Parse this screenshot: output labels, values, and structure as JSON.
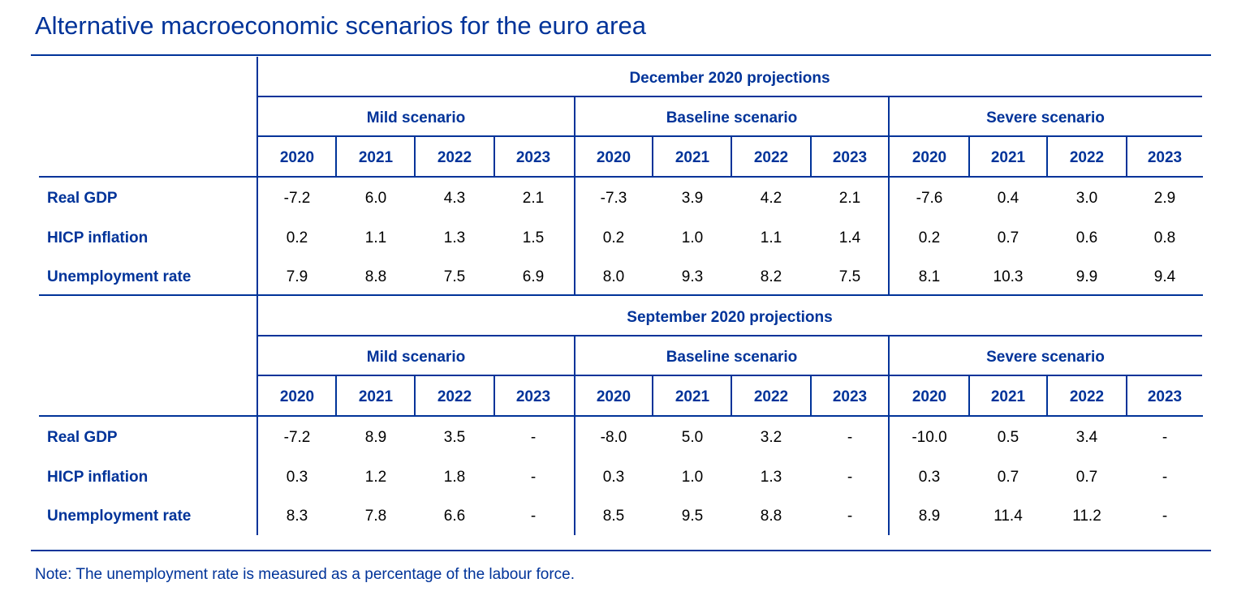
{
  "title": "Alternative macroeconomic scenarios for the euro area",
  "years": [
    "2020",
    "2021",
    "2022",
    "2023"
  ],
  "row_labels": [
    "Real GDP",
    "HICP inflation",
    "Unemployment rate"
  ],
  "sections": [
    {
      "heading": "December 2020 projections",
      "scenarios": [
        {
          "name": "Mild scenario",
          "rows": [
            [
              "-7.2",
              "6.0",
              "4.3",
              "2.1"
            ],
            [
              "0.2",
              "1.1",
              "1.3",
              "1.5"
            ],
            [
              "7.9",
              "8.8",
              "7.5",
              "6.9"
            ]
          ]
        },
        {
          "name": "Baseline scenario",
          "rows": [
            [
              "-7.3",
              "3.9",
              "4.2",
              "2.1"
            ],
            [
              "0.2",
              "1.0",
              "1.1",
              "1.4"
            ],
            [
              "8.0",
              "9.3",
              "8.2",
              "7.5"
            ]
          ]
        },
        {
          "name": "Severe scenario",
          "rows": [
            [
              "-7.6",
              "0.4",
              "3.0",
              "2.9"
            ],
            [
              "0.2",
              "0.7",
              "0.6",
              "0.8"
            ],
            [
              "8.1",
              "10.3",
              "9.9",
              "9.4"
            ]
          ]
        }
      ]
    },
    {
      "heading": "September 2020 projections",
      "scenarios": [
        {
          "name": "Mild scenario",
          "rows": [
            [
              "-7.2",
              "8.9",
              "3.5",
              "-"
            ],
            [
              "0.3",
              "1.2",
              "1.8",
              "-"
            ],
            [
              "8.3",
              "7.8",
              "6.6",
              "-"
            ]
          ]
        },
        {
          "name": "Baseline scenario",
          "rows": [
            [
              "-8.0",
              "5.0",
              "3.2",
              "-"
            ],
            [
              "0.3",
              "1.0",
              "1.3",
              "-"
            ],
            [
              "8.5",
              "9.5",
              "8.8",
              "-"
            ]
          ]
        },
        {
          "name": "Severe scenario",
          "rows": [
            [
              "-10.0",
              "0.5",
              "3.4",
              "-"
            ],
            [
              "0.3",
              "0.7",
              "0.7",
              "-"
            ],
            [
              "8.9",
              "11.4",
              "11.2",
              "-"
            ]
          ]
        }
      ]
    }
  ],
  "note": "Note: The unemployment rate is measured as a percentage of the labour force.",
  "colors": {
    "accent": "#003399"
  }
}
